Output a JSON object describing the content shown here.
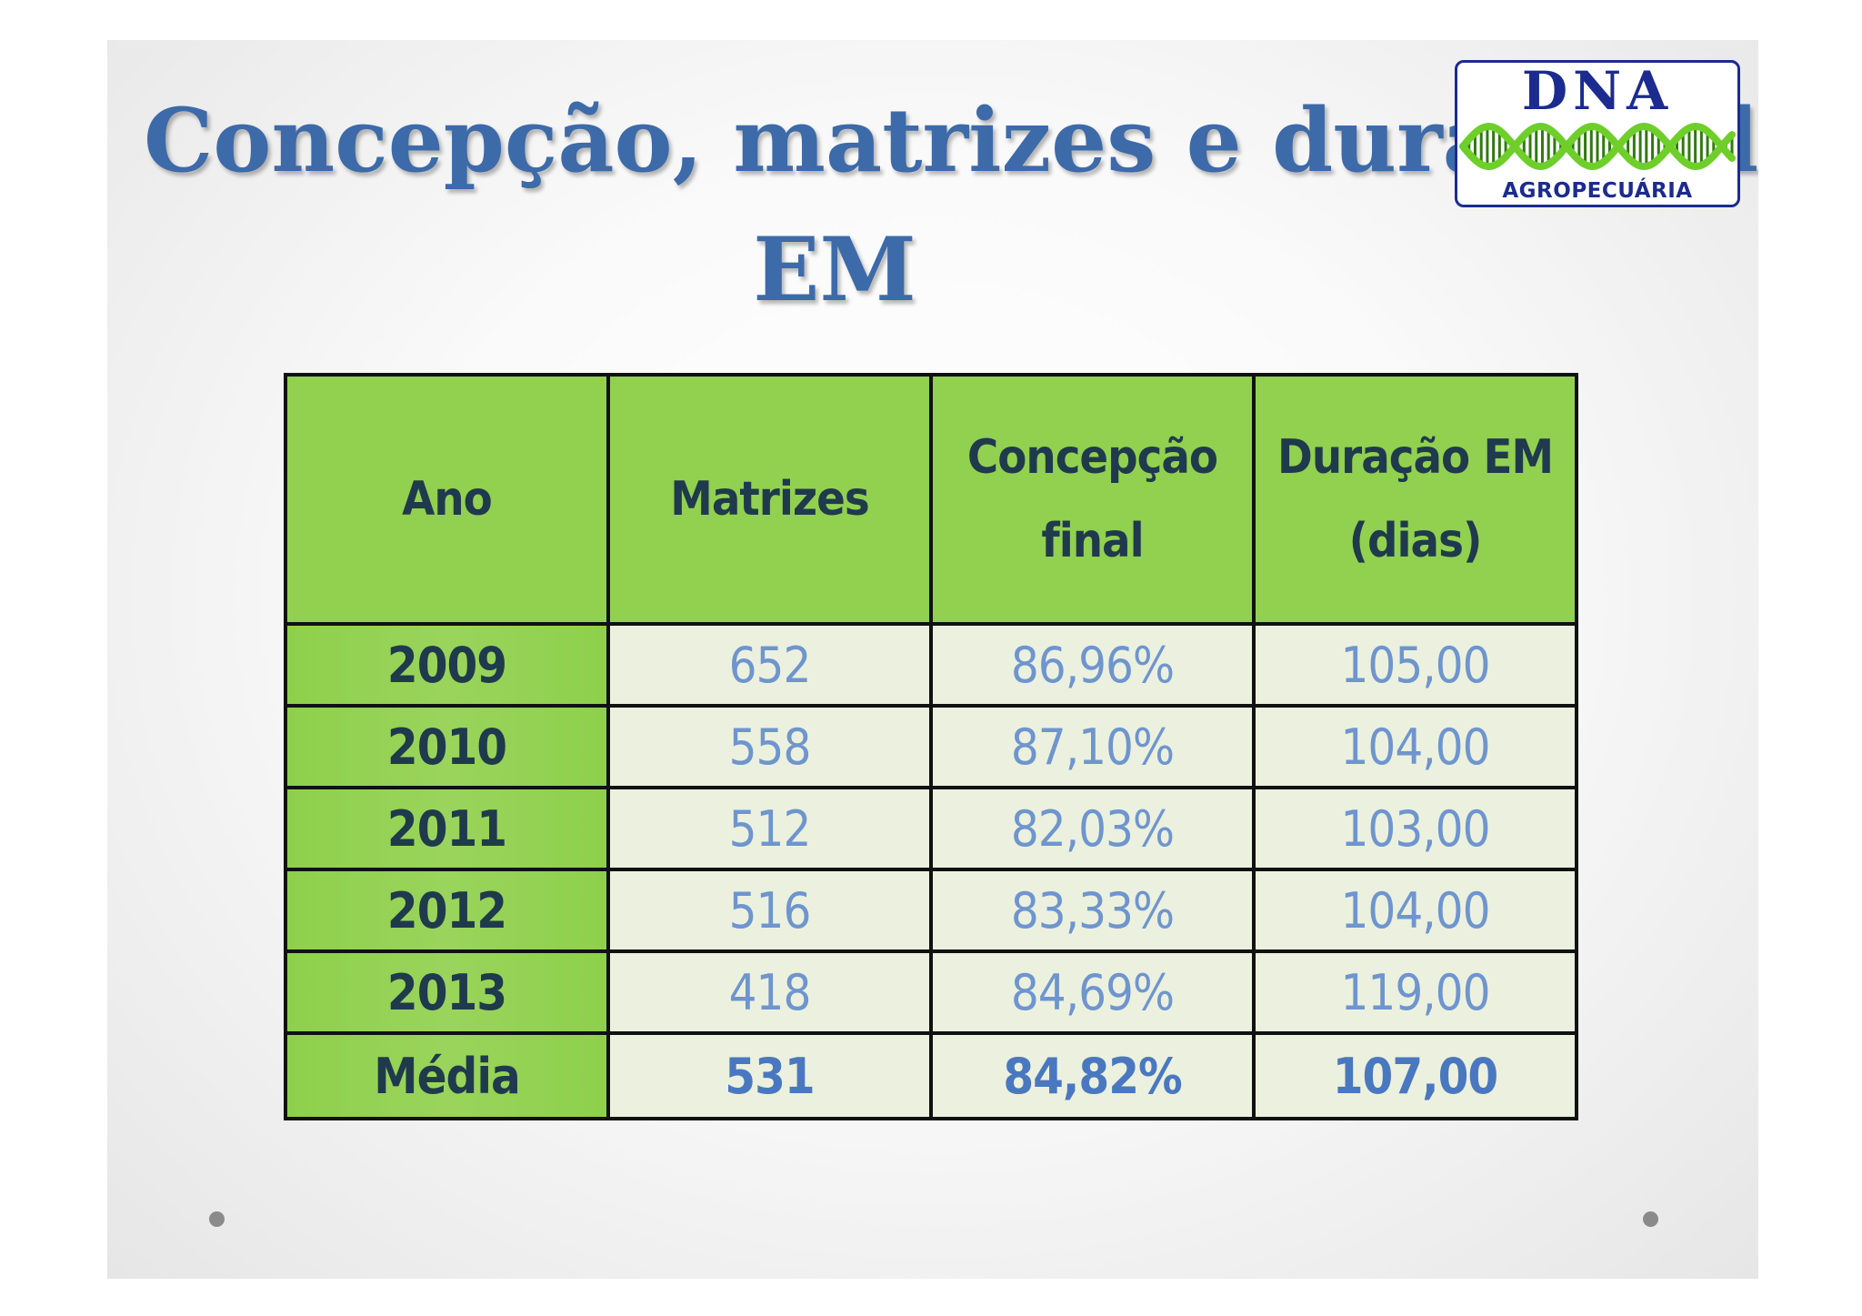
{
  "title": {
    "line1": "Concepção, matrizes e duração da",
    "line2": "EM"
  },
  "logo": {
    "brand": "DNA",
    "subtitle": "AGROPECUÁRIA"
  },
  "table": {
    "headers": {
      "ano": "Ano",
      "matrizes": "Matrizes",
      "concepcao_line1": "Concepção",
      "concepcao_line2": "final",
      "duracao_line1": "Duração EM",
      "duracao_line2": "(dias)"
    },
    "rows": [
      {
        "ano": "2009",
        "matrizes": "652",
        "concepcao": "86,96%",
        "duracao": "105,00"
      },
      {
        "ano": "2010",
        "matrizes": "558",
        "concepcao": "87,10%",
        "duracao": "104,00"
      },
      {
        "ano": "2011",
        "matrizes": "512",
        "concepcao": "82,03%",
        "duracao": "103,00"
      },
      {
        "ano": "2012",
        "matrizes": "516",
        "concepcao": "83,33%",
        "duracao": "104,00"
      },
      {
        "ano": "2013",
        "matrizes": "418",
        "concepcao": "84,69%",
        "duracao": "119,00"
      }
    ],
    "average": {
      "ano": "Média",
      "matrizes": "531",
      "concepcao": "84,82%",
      "duracao": "107,00"
    }
  },
  "colors": {
    "title": "#3d6aa9",
    "header_green": "#92d050",
    "cell_bg": "#ebf1de",
    "value_blue": "#6f95cf",
    "logo_navy": "#1c2b8f",
    "helix_green": "#6fcf2a"
  }
}
